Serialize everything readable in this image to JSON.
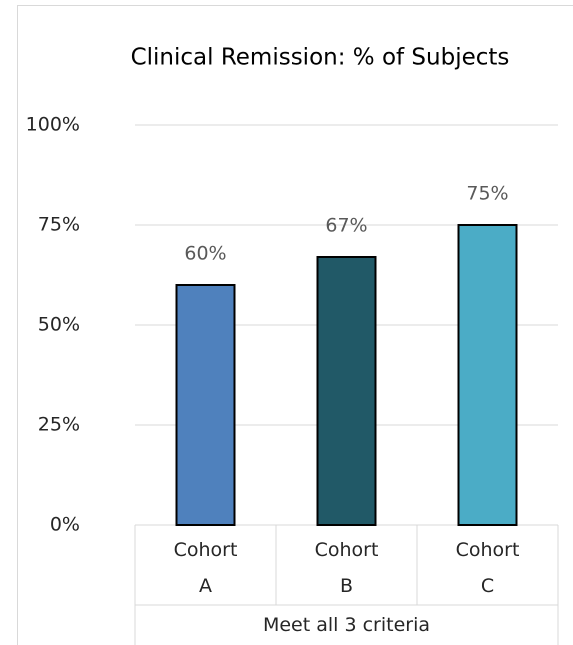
{
  "chart_data": {
    "type": "bar",
    "title": "Clinical Remission: % of Subjects",
    "categories": [
      "Cohort A",
      "Cohort B",
      "Cohort C"
    ],
    "category_group": "Meet all 3 criteria",
    "values": [
      60,
      67,
      75
    ],
    "value_labels": [
      "60%",
      "67%",
      "75%"
    ],
    "colors": [
      "#4f81bd",
      "#215967",
      "#4bacc6"
    ],
    "ylim": [
      0,
      100
    ],
    "yticks": [
      {
        "value": 0,
        "label": "0%"
      },
      {
        "value": 25,
        "label": "25%"
      },
      {
        "value": 50,
        "label": "50%"
      },
      {
        "value": 75,
        "label": "75%"
      },
      {
        "value": 100,
        "label": "100%"
      }
    ],
    "grid": true
  }
}
